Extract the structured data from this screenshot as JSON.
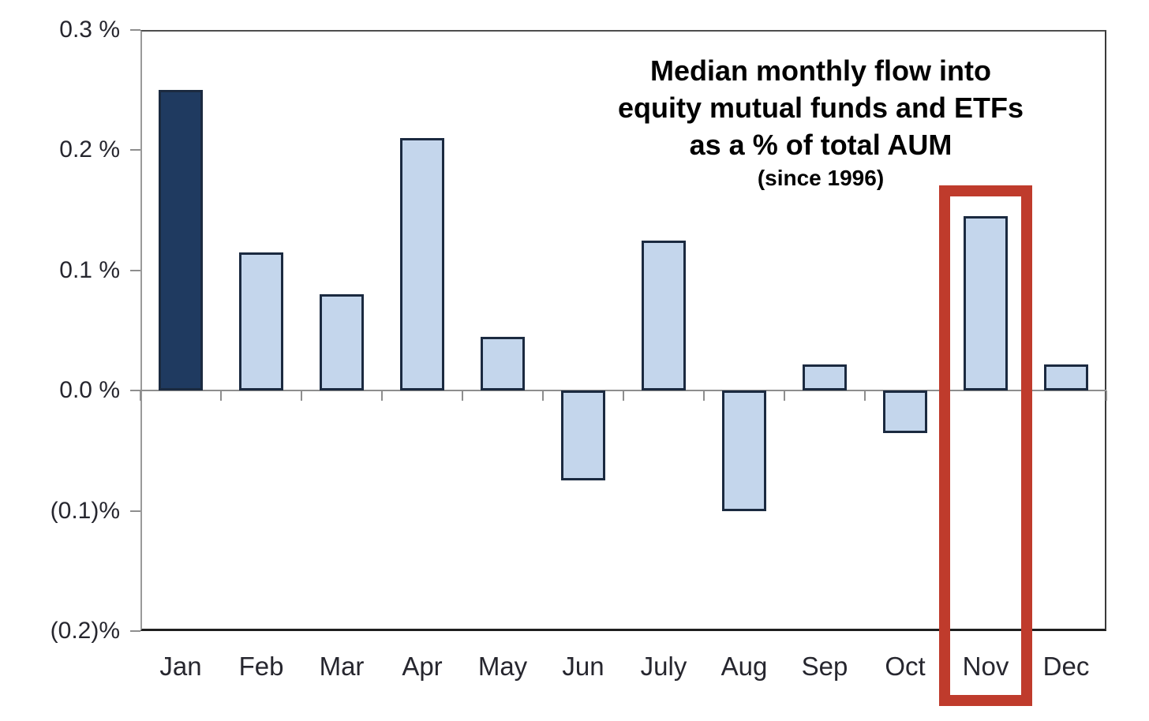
{
  "chart_data": {
    "type": "bar",
    "title_lines": [
      "Median monthly flow into",
      "equity mutual funds and ETFs",
      "as a % of total AUM"
    ],
    "subtitle": "(since 1996)",
    "categories": [
      "Jan",
      "Feb",
      "Mar",
      "Apr",
      "May",
      "Jun",
      "July",
      "Aug",
      "Sep",
      "Oct",
      "Nov",
      "Dec"
    ],
    "values": [
      0.25,
      0.115,
      0.08,
      0.21,
      0.045,
      -0.075,
      0.125,
      -0.1,
      0.022,
      -0.035,
      0.145,
      0.022
    ],
    "unit": "% of total AUM",
    "ylim": [
      -0.2,
      0.3
    ],
    "y_ticks": [
      {
        "value": 0.3,
        "label": "0.3 %"
      },
      {
        "value": 0.2,
        "label": "0.2 %"
      },
      {
        "value": 0.1,
        "label": "0.1 %"
      },
      {
        "value": 0.0,
        "label": "0.0 %"
      },
      {
        "value": -0.1,
        "label": "(0.1)%"
      },
      {
        "value": -0.2,
        "label": "(0.2)%"
      }
    ],
    "emphasized_category": "Jan",
    "highlighted_category": "Nov",
    "grid": false,
    "legend": false,
    "colors": {
      "bar_fill": "#c4d6ec",
      "bar_fill_emphasis": "#1f3a60",
      "bar_border": "#1b2a40",
      "highlight_box": "#bf3b2c",
      "zero_line": "#8e8e8e",
      "axis_text": "#26262e",
      "title_text": "#000000"
    }
  }
}
